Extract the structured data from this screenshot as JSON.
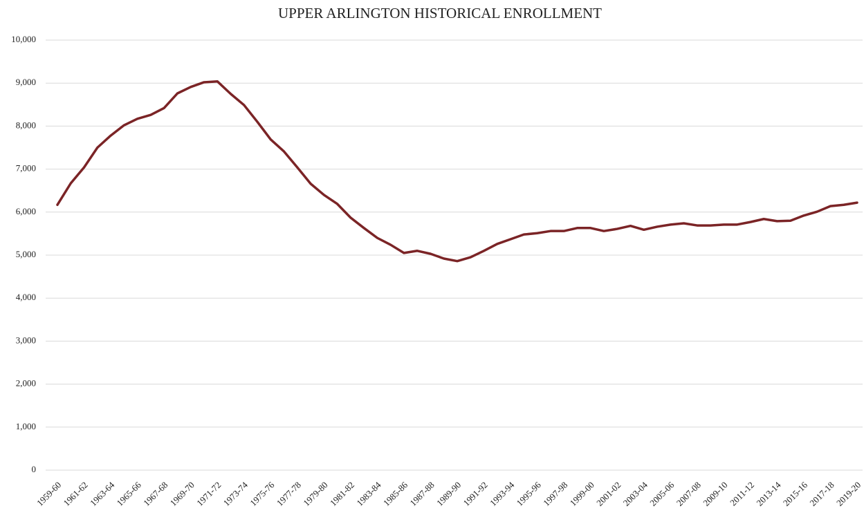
{
  "chart_data": {
    "type": "line",
    "title": "UPPER ARLINGTON HISTORICAL ENROLLMENT",
    "categories": [
      "1959-60",
      null,
      "1961-62",
      null,
      "1963-64",
      null,
      "1965-66",
      null,
      "1967-68",
      null,
      "1969-70",
      null,
      "1971-72",
      null,
      "1973-74",
      null,
      "1975-76",
      null,
      "1977-78",
      null,
      "1979-80",
      null,
      "1981-82",
      null,
      "1983-84",
      null,
      "1985-86",
      null,
      "1987-88",
      null,
      "1989-90",
      null,
      "1991-92",
      null,
      "1993-94",
      null,
      "1995-96",
      null,
      "1997-98",
      null,
      "1999-00",
      null,
      "2001-02",
      null,
      "2003-04",
      null,
      "2005-06",
      null,
      "2007-08",
      null,
      "2009-10",
      null,
      "2011-12",
      null,
      "2013-14",
      null,
      "2015-16",
      null,
      "2017-18",
      null,
      "2019-20"
    ],
    "series": [
      {
        "name": "Enrollment",
        "color": "#7b2426",
        "values": [
          6170,
          6670,
          7040,
          7500,
          7780,
          8020,
          8170,
          8260,
          8420,
          8760,
          8910,
          9020,
          9040,
          8750,
          8490,
          8100,
          7690,
          7410,
          7040,
          6660,
          6400,
          6190,
          5870,
          5630,
          5400,
          5240,
          5050,
          5100,
          5030,
          4920,
          4860,
          4950,
          5100,
          5260,
          5370,
          5480,
          5510,
          5560,
          5560,
          5630,
          5630,
          5560,
          5610,
          5680,
          5590,
          5660,
          5710,
          5740,
          5690,
          5690,
          5710,
          5710,
          5770,
          5840,
          5790,
          5800,
          5920,
          6010,
          6140,
          6170,
          6220
        ]
      }
    ],
    "ylim": [
      0,
      10000
    ],
    "yticks": [
      0,
      {
        "value": 1000,
        "label": "1,000"
      },
      {
        "value": 2000,
        "label": "2,000"
      },
      {
        "value": 3000,
        "label": "3,000"
      },
      {
        "value": 4000,
        "label": "4,000"
      },
      {
        "value": 5000,
        "label": "5,000"
      },
      {
        "value": 6000,
        "label": "6,000"
      },
      {
        "value": 7000,
        "label": "7,000"
      },
      {
        "value": 8000,
        "label": "8,000"
      },
      {
        "value": 9000,
        "label": "9,000"
      },
      {
        "value": 10000,
        "label": "10,000"
      }
    ],
    "grid": true
  }
}
